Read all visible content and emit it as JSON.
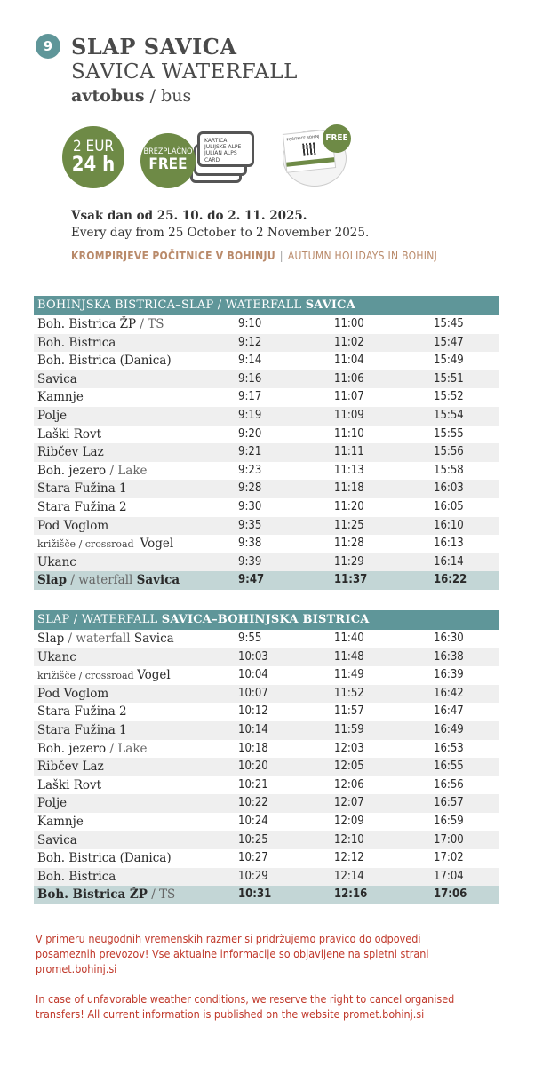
{
  "header": {
    "route_number": "9",
    "title_sl": "SLAP SAVICA",
    "title_en": "SAVICA WATERFALL",
    "mode_sl": "avtobus",
    "mode_sep": " / ",
    "mode_en": "bus"
  },
  "tickets": {
    "price_line1": "2 EUR",
    "price_line2": "24 h",
    "free_sl": "BREZPLAČNO",
    "free_en": "FREE",
    "card_text": [
      "KARTICA",
      "JULIJSKE ALPE",
      "JULIAN ALPS CARD"
    ],
    "guest_card_title": "POČITNICE BOHINJ",
    "guest_free": "FREE",
    "accent_color": "#6e8a46"
  },
  "validity": {
    "sl": "Vsak dan od 25. 10. do 2. 11. 2025.",
    "en": "Every day from 25 October to 2 November 2025."
  },
  "holiday": {
    "sl": "KROMPIRJEVE POČITNICE V BOHINJU",
    "sep": "|",
    "en": "AUTUMN HOLIDAYS IN BOHINJ"
  },
  "tables": [
    {
      "title_a": "BOHINJSKA BISTRICA–SLAP / WATERFALL ",
      "title_b": "SAVICA",
      "rows": [
        {
          "stop": [
            [
              "Boh. Bistrica ŽP",
              ""
            ],
            [
              " / TS",
              "sec"
            ]
          ],
          "times": [
            "9:10",
            "11:00",
            "15:45"
          ]
        },
        {
          "stop": [
            [
              "Boh. Bistrica",
              ""
            ]
          ],
          "times": [
            "9:12",
            "11:02",
            "15:47"
          ]
        },
        {
          "stop": [
            [
              "Boh. Bistrica (Danica)",
              ""
            ]
          ],
          "times": [
            "9:14",
            "11:04",
            "15:49"
          ]
        },
        {
          "stop": [
            [
              "Savica",
              ""
            ]
          ],
          "times": [
            "9:16",
            "11:06",
            "15:51"
          ]
        },
        {
          "stop": [
            [
              "Kamnje",
              ""
            ]
          ],
          "times": [
            "9:17",
            "11:07",
            "15:52"
          ]
        },
        {
          "stop": [
            [
              "Polje",
              ""
            ]
          ],
          "times": [
            "9:19",
            "11:09",
            "15:54"
          ]
        },
        {
          "stop": [
            [
              "Laški Rovt",
              ""
            ]
          ],
          "times": [
            "9:20",
            "11:10",
            "15:55"
          ]
        },
        {
          "stop": [
            [
              "Ribčev Laz",
              ""
            ]
          ],
          "times": [
            "9:21",
            "11:11",
            "15:56"
          ]
        },
        {
          "stop": [
            [
              "Boh. jezero",
              ""
            ],
            [
              " / Lake",
              "sec"
            ]
          ],
          "times": [
            "9:23",
            "11:13",
            "15:58"
          ]
        },
        {
          "stop": [
            [
              "Stara Fužina 1",
              ""
            ]
          ],
          "times": [
            "9:28",
            "11:18",
            "16:03"
          ]
        },
        {
          "stop": [
            [
              "Stara Fužina 2",
              ""
            ]
          ],
          "times": [
            "9:30",
            "11:20",
            "16:05"
          ]
        },
        {
          "stop": [
            [
              "Pod Voglom",
              ""
            ]
          ],
          "times": [
            "9:35",
            "11:25",
            "16:10"
          ]
        },
        {
          "stop": [
            [
              "križišče / crossroad  ",
              "sm"
            ],
            [
              "Vogel",
              ""
            ]
          ],
          "times": [
            "9:38",
            "11:28",
            "16:13"
          ]
        },
        {
          "stop": [
            [
              "Ukanc",
              ""
            ]
          ],
          "times": [
            "9:39",
            "11:29",
            "16:14"
          ]
        },
        {
          "stop": [
            [
              "Slap",
              ""
            ],
            [
              " / waterfall ",
              "sec"
            ],
            [
              "Savica",
              ""
            ]
          ],
          "times": [
            "9:47",
            "11:37",
            "16:22"
          ],
          "final": true
        }
      ]
    },
    {
      "title_a": "SLAP / WATERFALL ",
      "title_b": "SAVICA–BOHINJSKA BISTRICA",
      "rows": [
        {
          "stop": [
            [
              "Slap",
              ""
            ],
            [
              " / waterfall ",
              "sec"
            ],
            [
              "Savica",
              ""
            ]
          ],
          "times": [
            "9:55",
            "11:40",
            "16:30"
          ]
        },
        {
          "stop": [
            [
              "Ukanc",
              ""
            ]
          ],
          "times": [
            "10:03",
            "11:48",
            "16:38"
          ]
        },
        {
          "stop": [
            [
              "križišče / crossroad ",
              "sm"
            ],
            [
              "Vogel",
              ""
            ]
          ],
          "times": [
            "10:04",
            "11:49",
            "16:39"
          ]
        },
        {
          "stop": [
            [
              "Pod Voglom",
              ""
            ]
          ],
          "times": [
            "10:07",
            "11:52",
            "16:42"
          ]
        },
        {
          "stop": [
            [
              "Stara Fužina 2",
              ""
            ]
          ],
          "times": [
            "10:12",
            "11:57",
            "16:47"
          ]
        },
        {
          "stop": [
            [
              "Stara Fužina 1",
              ""
            ]
          ],
          "times": [
            "10:14",
            "11:59",
            "16:49"
          ]
        },
        {
          "stop": [
            [
              "Boh. jezero",
              ""
            ],
            [
              " / Lake",
              "sec"
            ]
          ],
          "times": [
            "10:18",
            "12:03",
            "16:53"
          ]
        },
        {
          "stop": [
            [
              "Ribčev Laz",
              ""
            ]
          ],
          "times": [
            "10:20",
            "12:05",
            "16:55"
          ]
        },
        {
          "stop": [
            [
              "Laški Rovt",
              ""
            ]
          ],
          "times": [
            "10:21",
            "12:06",
            "16:56"
          ]
        },
        {
          "stop": [
            [
              "Polje",
              ""
            ]
          ],
          "times": [
            "10:22",
            "12:07",
            "16:57"
          ]
        },
        {
          "stop": [
            [
              "Kamnje",
              ""
            ]
          ],
          "times": [
            "10:24",
            "12:09",
            "16:59"
          ]
        },
        {
          "stop": [
            [
              "Savica",
              ""
            ]
          ],
          "times": [
            "10:25",
            "12:10",
            "17:00"
          ]
        },
        {
          "stop": [
            [
              "Boh. Bistrica (Danica)",
              ""
            ]
          ],
          "times": [
            "10:27",
            "12:12",
            "17:02"
          ]
        },
        {
          "stop": [
            [
              "Boh. Bistrica",
              ""
            ]
          ],
          "times": [
            "10:29",
            "12:14",
            "17:04"
          ]
        },
        {
          "stop": [
            [
              "Boh. Bistrica ŽP",
              ""
            ],
            [
              " / TS",
              "sec"
            ]
          ],
          "times": [
            "10:31",
            "12:16",
            "17:06"
          ],
          "final": true
        }
      ]
    }
  ],
  "notes": {
    "sl": "V primeru neugodnih vremenskih razmer si pridržujemo pravico do odpovedi posameznih prevozov! Vse aktualne informacije so objavljene na spletni strani promet.bohinj.si",
    "en": "In case of unfavorable weather conditions, we reserve the right to cancel organised transfers! All current information is published on the website promet.bohinj.si",
    "color": "#c0392b"
  }
}
